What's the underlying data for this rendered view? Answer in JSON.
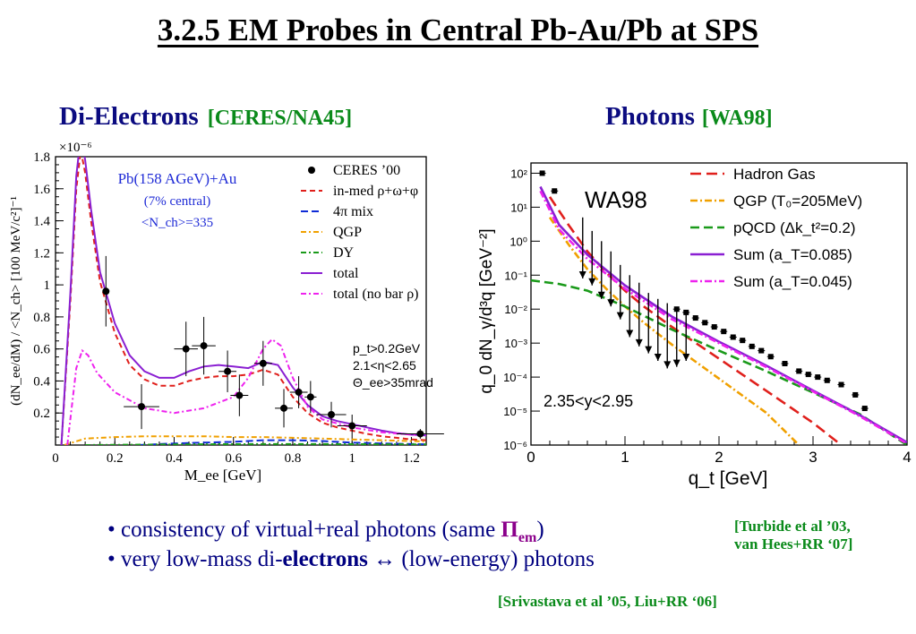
{
  "slide_title": "3.2.5 EM Probes in Central Pb-Au/Pb at SPS",
  "left_panel": {
    "heading": "Di-Electrons",
    "heading_ref": "[CERES/NA45]"
  },
  "right_panel": {
    "heading": "Photons",
    "heading_ref": "[WA98]"
  },
  "bullets": [
    {
      "prefix": "consistency of virtual+real photons (same ",
      "pi": "Π",
      "pi_sub": "em",
      "suffix": ")"
    },
    {
      "prefix": "very low-mass di-",
      "bold": "electrons",
      "suffix": " ↔ (low-energy) photons"
    }
  ],
  "citation_1": [
    "[Turbide et al ’03,",
    "van Hees+RR ‘07]"
  ],
  "citation_2": "[Srivastava et al ’05, Liu+RR ‘06]",
  "chart_data": [
    {
      "type": "line",
      "multiplier_label": "×10⁻⁶",
      "xlabel": "M_ee [GeV]",
      "ylabel": "(dN_ee/dM) / <N_ch> [100 MeV/c²]⁻¹",
      "xlim": [
        0,
        1.25
      ],
      "ylim": [
        0,
        1.8
      ],
      "xticks": [
        0,
        0.2,
        0.4,
        0.6,
        0.8,
        1,
        1.2
      ],
      "yticks": [
        0.2,
        0.4,
        0.6,
        0.8,
        1,
        1.2,
        1.4,
        1.6,
        1.8
      ],
      "annotation_lines": [
        "Pb(158 AGeV)+Au",
        "(7% central)",
        "<N_ch>=335"
      ],
      "cut_lines": [
        "p_t>0.2GeV",
        "2.1<η<2.65",
        "Θ_ee>35mrad"
      ],
      "legend": [
        "CERES ’00",
        "in-med ρ+ω+φ",
        "4π mix",
        "QGP",
        "DY",
        "total",
        "total (no bar ρ)"
      ],
      "points": [
        {
          "x": 0.17,
          "y": 0.96,
          "yerr": 0.22,
          "xerr": 0.0
        },
        {
          "x": 0.29,
          "y": 0.24,
          "yerr": 0.14,
          "xerr": 0.06
        },
        {
          "x": 0.44,
          "y": 0.6,
          "yerr": 0.17,
          "xerr": 0.04
        },
        {
          "x": 0.5,
          "y": 0.62,
          "yerr": 0.18,
          "xerr": 0.04
        },
        {
          "x": 0.58,
          "y": 0.46,
          "yerr": 0.13,
          "xerr": 0.03
        },
        {
          "x": 0.62,
          "y": 0.31,
          "yerr": 0.13,
          "xerr": 0.03
        },
        {
          "x": 0.7,
          "y": 0.51,
          "yerr": 0.14,
          "xerr": 0.03
        },
        {
          "x": 0.77,
          "y": 0.23,
          "yerr": 0.12,
          "xerr": 0.03
        },
        {
          "x": 0.82,
          "y": 0.33,
          "yerr": 0.1,
          "xerr": 0.03
        },
        {
          "x": 0.86,
          "y": 0.3,
          "yerr": 0.1,
          "xerr": 0.02
        },
        {
          "x": 0.93,
          "y": 0.19,
          "yerr": 0.08,
          "xerr": 0.05
        },
        {
          "x": 1.0,
          "y": 0.12,
          "yerr": 0.07,
          "xerr": 0.05
        },
        {
          "x": 1.23,
          "y": 0.07,
          "yerr": 0.03,
          "xerr": 0.08
        }
      ],
      "series": [
        {
          "name": "in-med ρ+ω+φ",
          "color": "#e0201c",
          "dash": "6,4",
          "x": [
            0.02,
            0.05,
            0.07,
            0.085,
            0.1,
            0.12,
            0.15,
            0.2,
            0.25,
            0.3,
            0.35,
            0.4,
            0.45,
            0.5,
            0.55,
            0.6,
            0.65,
            0.7,
            0.75,
            0.8,
            0.85,
            0.9,
            0.95,
            1.0,
            1.05,
            1.1,
            1.15,
            1.2,
            1.25
          ],
          "y": [
            0.0,
            0.9,
            1.6,
            1.84,
            1.7,
            1.4,
            1.02,
            0.7,
            0.5,
            0.41,
            0.37,
            0.37,
            0.4,
            0.42,
            0.43,
            0.43,
            0.44,
            0.47,
            0.44,
            0.3,
            0.2,
            0.14,
            0.11,
            0.09,
            0.07,
            0.055,
            0.045,
            0.035,
            0.03
          ]
        },
        {
          "name": "4π mix",
          "color": "#0f2bd6",
          "dash": "8,4",
          "x": [
            0.28,
            0.4,
            0.5,
            0.6,
            0.7,
            0.8,
            0.9,
            1.0,
            1.1,
            1.2,
            1.25
          ],
          "y": [
            0.0,
            0.01,
            0.015,
            0.02,
            0.03,
            0.03,
            0.025,
            0.015,
            0.01,
            0.006,
            0.005
          ]
        },
        {
          "name": "QGP",
          "color": "#f0a000",
          "dash": "6,3,2,3",
          "x": [
            0.03,
            0.1,
            0.2,
            0.3,
            0.4,
            0.5,
            0.6,
            0.7,
            0.8,
            0.9,
            1.0,
            1.1,
            1.2,
            1.25
          ],
          "y": [
            0.0,
            0.04,
            0.05,
            0.055,
            0.055,
            0.055,
            0.05,
            0.05,
            0.045,
            0.04,
            0.035,
            0.03,
            0.025,
            0.023
          ]
        },
        {
          "name": "DY",
          "color": "#1a9a1a",
          "dash": "6,3,2,3",
          "x": [
            0.1,
            0.3,
            0.5,
            0.7,
            0.9,
            1.1,
            1.25
          ],
          "y": [
            0.0,
            0.003,
            0.005,
            0.006,
            0.006,
            0.005,
            0.004
          ]
        },
        {
          "name": "total",
          "color": "#8a1fd2",
          "dash": "",
          "x": [
            0.02,
            0.05,
            0.07,
            0.085,
            0.1,
            0.12,
            0.15,
            0.2,
            0.25,
            0.3,
            0.35,
            0.4,
            0.45,
            0.5,
            0.55,
            0.6,
            0.65,
            0.7,
            0.75,
            0.8,
            0.85,
            0.9,
            0.95,
            1.0,
            1.05,
            1.1,
            1.15,
            1.2,
            1.25
          ],
          "y": [
            0.0,
            0.95,
            1.68,
            1.93,
            1.78,
            1.47,
            1.08,
            0.76,
            0.56,
            0.46,
            0.42,
            0.42,
            0.46,
            0.49,
            0.5,
            0.49,
            0.48,
            0.52,
            0.5,
            0.36,
            0.25,
            0.18,
            0.15,
            0.13,
            0.11,
            0.09,
            0.075,
            0.065,
            0.06
          ]
        },
        {
          "name": "total (no bar ρ)",
          "color": "#ee22ee",
          "dash": "6,3,2,3",
          "x": [
            0.04,
            0.07,
            0.09,
            0.11,
            0.14,
            0.2,
            0.3,
            0.4,
            0.5,
            0.6,
            0.65,
            0.7,
            0.73,
            0.76,
            0.8,
            0.85,
            0.9,
            1.0,
            1.1,
            1.2,
            1.25
          ],
          "y": [
            0.0,
            0.48,
            0.59,
            0.56,
            0.45,
            0.33,
            0.23,
            0.2,
            0.23,
            0.3,
            0.42,
            0.6,
            0.66,
            0.62,
            0.42,
            0.24,
            0.16,
            0.11,
            0.08,
            0.065,
            0.06
          ]
        }
      ]
    },
    {
      "type": "line",
      "yscale": "log",
      "xlabel": "q_t [GeV]",
      "ylabel": "q_0 dN_γ/d³q [GeV⁻²]",
      "xlim": [
        0,
        4
      ],
      "ylim": [
        1e-06,
        200
      ],
      "xticks": [
        0,
        1,
        2,
        3,
        4
      ],
      "yticks": [
        1e-06,
        1e-05,
        0.0001,
        0.001,
        0.01,
        0.1,
        1,
        10,
        100
      ],
      "ytick_labels": [
        "10⁻⁶",
        "10⁻⁵",
        "10⁻⁴",
        "10⁻³",
        "10⁻²",
        "10⁻¹",
        "10⁰",
        "10¹",
        "10²"
      ],
      "experiment_label": "WA98",
      "rapidity_label": "2.35<y<2.95",
      "legend": [
        "Hadron Gas",
        "QGP (T₀=205MeV)",
        "pQCD (Δk_t²=0.2)",
        "Sum (a_T=0.085)",
        "Sum (a_T=0.045)"
      ],
      "points": [
        {
          "x": 0.12,
          "y": 100
        },
        {
          "x": 0.25,
          "y": 30
        },
        {
          "x": 1.55,
          "y": 0.01
        },
        {
          "x": 1.65,
          "y": 0.008
        },
        {
          "x": 1.75,
          "y": 0.0055
        },
        {
          "x": 1.85,
          "y": 0.004
        },
        {
          "x": 1.95,
          "y": 0.003
        },
        {
          "x": 2.05,
          "y": 0.0022
        },
        {
          "x": 2.15,
          "y": 0.0015
        },
        {
          "x": 2.25,
          "y": 0.0012
        },
        {
          "x": 2.35,
          "y": 0.0008
        },
        {
          "x": 2.45,
          "y": 0.0006
        },
        {
          "x": 2.55,
          "y": 0.0004
        },
        {
          "x": 2.7,
          "y": 0.00025
        },
        {
          "x": 2.85,
          "y": 0.00015
        },
        {
          "x": 2.95,
          "y": 0.00012
        },
        {
          "x": 3.05,
          "y": 0.0001
        },
        {
          "x": 3.15,
          "y": 8e-05
        },
        {
          "x": 3.3,
          "y": 6e-05
        },
        {
          "x": 3.45,
          "y": 3e-05
        },
        {
          "x": 3.55,
          "y": 1.2e-05
        }
      ],
      "upper_limits": [
        {
          "x": 0.55,
          "y": 5,
          "to": 0.08
        },
        {
          "x": 0.65,
          "y": 2,
          "to": 0.05
        },
        {
          "x": 0.75,
          "y": 1,
          "to": 0.02
        },
        {
          "x": 0.85,
          "y": 0.5,
          "to": 0.012
        },
        {
          "x": 0.95,
          "y": 0.2,
          "to": 0.005
        },
        {
          "x": 1.05,
          "y": 0.1,
          "to": 0.0015
        },
        {
          "x": 1.15,
          "y": 0.06,
          "to": 0.0008
        },
        {
          "x": 1.25,
          "y": 0.03,
          "to": 0.0005
        },
        {
          "x": 1.35,
          "y": 0.02,
          "to": 0.0003
        },
        {
          "x": 1.45,
          "y": 0.015,
          "to": 0.00018
        },
        {
          "x": 1.55,
          "y": 0.01,
          "to": 0.0002
        },
        {
          "x": 1.65,
          "y": 0.008,
          "to": 0.0003
        }
      ],
      "series": [
        {
          "name": "Hadron Gas",
          "color": "#e0201c",
          "dash": "12,6",
          "x": [
            0.2,
            0.4,
            0.6,
            0.8,
            1.0,
            1.2,
            1.5,
            2.0,
            2.5,
            3.0,
            3.3
          ],
          "y": [
            20,
            3,
            0.5,
            0.12,
            0.035,
            0.012,
            0.003,
            0.00035,
            4e-05,
            4.5e-06,
            1e-06
          ]
        },
        {
          "name": "QGP (T₀=205MeV)",
          "color": "#f0a000",
          "dash": "8,3,2,3",
          "x": [
            0.2,
            0.4,
            0.6,
            0.8,
            1.0,
            1.2,
            1.5,
            2.0,
            2.5,
            2.85
          ],
          "y": [
            5,
            0.8,
            0.15,
            0.04,
            0.012,
            0.004,
            0.0009,
            9e-05,
            9e-06,
            1e-06
          ]
        },
        {
          "name": "pQCD (Δk_t²=0.2)",
          "color": "#1a9a1a",
          "dash": "10,5",
          "x": [
            0.0,
            0.3,
            0.6,
            1.0,
            1.5,
            2.0,
            2.5,
            3.0,
            3.5,
            4.0
          ],
          "y": [
            0.07,
            0.055,
            0.035,
            0.012,
            0.0025,
            0.0006,
            0.00015,
            3.5e-05,
            8e-06,
            1e-06
          ]
        },
        {
          "name": "Sum (a_T=0.085)",
          "color": "#8a1fd2",
          "dash": "",
          "x": [
            0.1,
            0.3,
            0.6,
            1.0,
            1.5,
            2.0,
            2.5,
            3.0,
            3.5,
            4.0
          ],
          "y": [
            40,
            3,
            0.4,
            0.05,
            0.006,
            0.0011,
            0.00022,
            4e-05,
            7.5e-06,
            1.2e-06
          ]
        },
        {
          "name": "Sum (a_T=0.045)",
          "color": "#ee22ee",
          "dash": "8,3,2,3",
          "x": [
            0.1,
            0.3,
            0.6,
            1.0,
            1.5,
            2.0,
            2.5,
            3.0,
            3.5,
            4.0
          ],
          "y": [
            30,
            2.2,
            0.3,
            0.04,
            0.005,
            0.001,
            0.0002,
            3.8e-05,
            7e-06,
            1.1e-06
          ]
        }
      ]
    }
  ]
}
